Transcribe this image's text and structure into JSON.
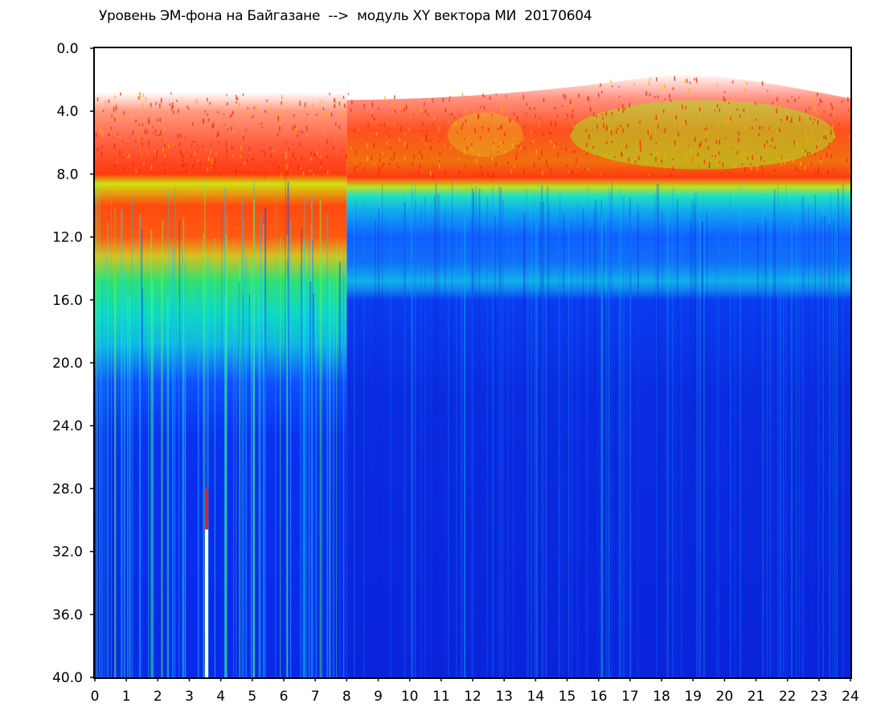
{
  "chart_data": {
    "type": "heatmap",
    "title": "Уровень ЭМ-фона на Байгазане  -->  модуль XY вектора МИ  20170604",
    "xlabel": "",
    "ylabel": "",
    "x_range": [
      0,
      24
    ],
    "y_range": [
      0,
      40
    ],
    "y_inverted": true,
    "x_ticks": [
      "0",
      "1",
      "2",
      "3",
      "4",
      "5",
      "6",
      "7",
      "8",
      "9",
      "10",
      "11",
      "12",
      "13",
      "14",
      "15",
      "16",
      "17",
      "18",
      "19",
      "20",
      "21",
      "22",
      "23",
      "24"
    ],
    "y_ticks": [
      "0.0",
      "4.0",
      "8.0",
      "12.0",
      "16.0",
      "20.0",
      "24.0",
      "28.0",
      "32.0",
      "36.0",
      "40.0"
    ],
    "colormap": [
      "#ffffff",
      "#ff0000",
      "#ffff00",
      "#00ff00",
      "#00ffff",
      "#0000ff"
    ],
    "colormap_note": "white = lowest level, red/yellow/green = intermediate, blue = highest",
    "regions": [
      {
        "x": [
          0,
          8
        ],
        "y_top_band": [
          3,
          8
        ],
        "y_orange_band": [
          8,
          15
        ],
        "y_green_band": [
          15,
          21
        ],
        "y_blue_from": 21
      },
      {
        "x": [
          8,
          24
        ],
        "y_top_band": [
          1.5,
          8
        ],
        "y_orange_band": [
          8,
          9
        ],
        "y_cyan_band": [
          9,
          15
        ],
        "y_blue_from": 15
      }
    ],
    "white_gap_x": [
      3.5,
      3.55
    ]
  }
}
